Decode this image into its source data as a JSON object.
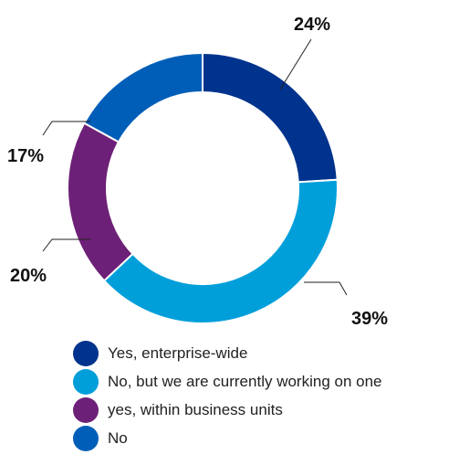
{
  "chart_data": {
    "type": "pie",
    "style": "donut",
    "categories": [
      "Yes, enterprise-wide",
      "No, but we are currently working on one",
      "yes, within business units",
      "No"
    ],
    "values": [
      24,
      39,
      20,
      17
    ],
    "value_labels": [
      "24%",
      "39%",
      "20%",
      "17%"
    ],
    "colors": [
      "#00338d",
      "#009fda",
      "#6d2077",
      "#005eb8"
    ],
    "legend_position": "bottom"
  }
}
